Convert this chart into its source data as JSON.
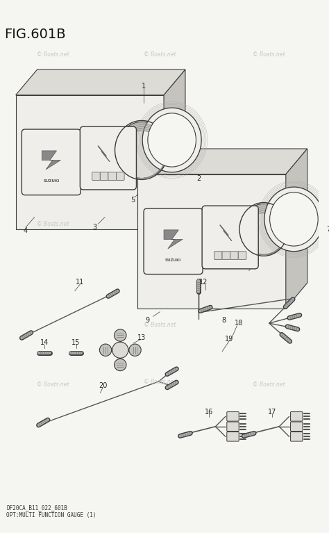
{
  "title": "FIG.601B",
  "bg_color": "#f5f5f2",
  "fg_color": "#2a2a2a",
  "footer_line1": "DF20CA_B11_022_601B",
  "footer_line2": "OPT:MULTI FUNCTION GAUGE (1)",
  "watermark_color": "#c8c8c8",
  "line_color": "#3a3a3a",
  "fill_light": "#f0eeeb",
  "fill_mid": "#dddbd6",
  "fill_dark": "#c5c3be"
}
